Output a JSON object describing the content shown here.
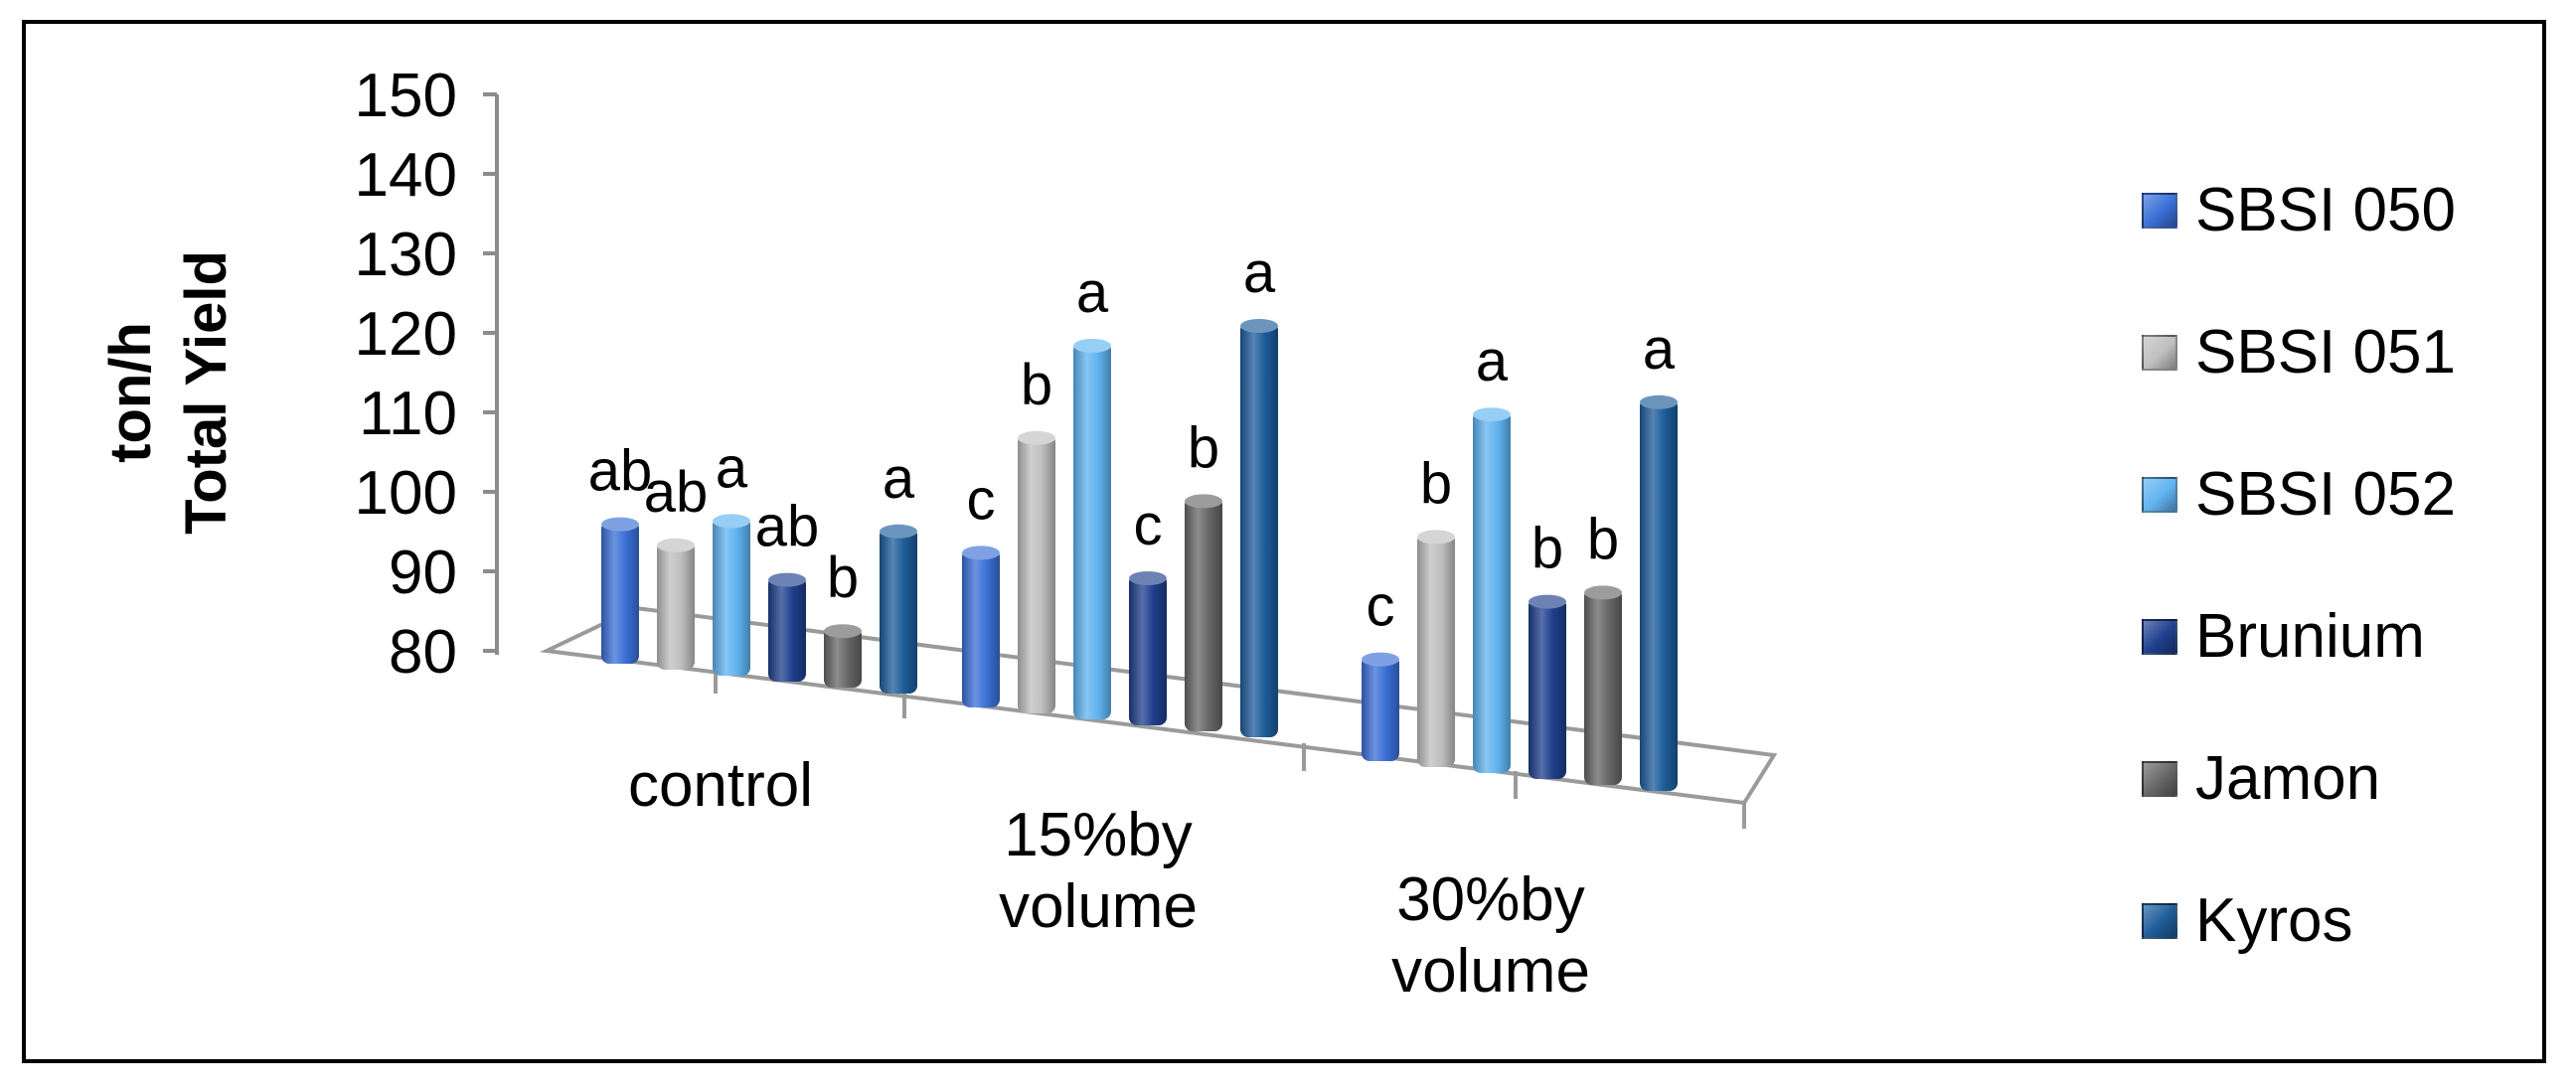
{
  "chart_data": {
    "type": "bar",
    "title": "",
    "ylabel": [
      "ton/h",
      "Total Yield"
    ],
    "xlabel": "",
    "ylim": [
      80,
      150
    ],
    "yticks": [
      "150",
      "140",
      "130",
      "120",
      "110",
      "100",
      "90",
      "80"
    ],
    "categories": [
      "control",
      "15%by volume",
      "30%by volume"
    ],
    "category_lines": [
      [
        "control"
      ],
      [
        "15%by",
        "volume"
      ],
      [
        "30%by",
        "volume"
      ]
    ],
    "series": [
      {
        "name": "SBSI 050",
        "color": "#3A6FD6",
        "values": [
          99,
          101,
          94
        ],
        "labels": [
          "ab",
          "c",
          "c"
        ]
      },
      {
        "name": "SBSI 051",
        "color": "#BEBEBE",
        "values": [
          97,
          117,
          111
        ],
        "labels": [
          "ab",
          "b",
          "b"
        ]
      },
      {
        "name": "SBSI 052",
        "color": "#5FB3F0",
        "values": [
          101,
          130,
          128
        ],
        "labels": [
          "a",
          "a",
          "a"
        ]
      },
      {
        "name": "Brunium",
        "color": "#1F3F8C",
        "values": [
          94,
          100,
          104
        ],
        "labels": [
          "ab",
          "c",
          "b"
        ]
      },
      {
        "name": "Jamon",
        "color": "#666666",
        "values": [
          88,
          111,
          106
        ],
        "labels": [
          "b",
          "b",
          "b"
        ]
      },
      {
        "name": "Kyros",
        "color": "#1D5C99",
        "values": [
          102,
          135,
          132
        ],
        "labels": [
          "a",
          "a",
          "a"
        ]
      }
    ],
    "legend": "right"
  }
}
